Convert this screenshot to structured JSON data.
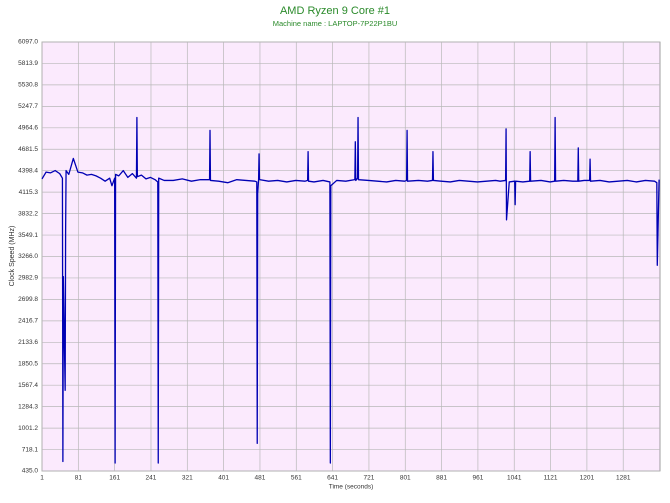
{
  "chart_data": {
    "type": "line",
    "title": "AMD Ryzen 9 Core #1",
    "subtitle": "Machine name : LAPTOP-7P22P1BU",
    "x_label": "Time (seconds)",
    "y_label": "Clock Speed (MHz)",
    "xlim": [
      1,
      1362
    ],
    "ylim": [
      435,
      6097
    ],
    "xticks": [
      1,
      81,
      161,
      241,
      321,
      401,
      481,
      561,
      641,
      721,
      801,
      881,
      961,
      1041,
      1121,
      1201,
      1281
    ],
    "yticks": [
      {
        "value": 435,
        "label": "435.0"
      },
      718.1,
      1001.2,
      1284.3,
      1567.4,
      1850.5,
      2133.6,
      2416.7,
      2699.8,
      2982.9,
      {
        "value": 3266,
        "label": "3266.0"
      },
      3549.1,
      3832.2,
      4115.3,
      4398.4,
      4681.5,
      4964.6,
      5247.7,
      5530.8,
      5813.9,
      {
        "value": 6097,
        "label": "6097.0"
      }
    ],
    "grid": true,
    "series": [
      {
        "color": "#0000b4",
        "x": [
          1,
          10,
          20,
          30,
          40,
          46,
          47,
          48,
          52,
          53,
          54,
          60,
          70,
          80,
          90,
          100,
          110,
          120,
          130,
          140,
          150,
          155,
          161,
          162,
          163,
          170,
          180,
          190,
          200,
          209,
          210,
          211,
          220,
          230,
          240,
          250,
          256,
          257,
          258,
          270,
          290,
          310,
          330,
          350,
          370,
          371,
          372,
          390,
          410,
          430,
          450,
          470,
          474,
          475,
          476,
          478,
          479,
          480,
          500,
          520,
          540,
          560,
          580,
          586,
          587,
          588,
          600,
          620,
          635,
          636,
          637,
          650,
          670,
          690,
          691,
          692,
          696,
          697,
          698,
          720,
          740,
          760,
          780,
          800,
          804,
          805,
          806,
          830,
          850,
          861,
          862,
          863,
          880,
          900,
          920,
          940,
          960,
          980,
          1000,
          1010,
          1022,
          1023,
          1024,
          1030,
          1042,
          1043,
          1044,
          1060,
          1075,
          1076,
          1077,
          1100,
          1120,
          1130,
          1131,
          1132,
          1150,
          1170,
          1181,
          1182,
          1183,
          1195,
          1207,
          1208,
          1209,
          1230,
          1250,
          1270,
          1290,
          1310,
          1330,
          1350,
          1355,
          1356,
          1360
        ],
        "values": [
          4290,
          4380,
          4370,
          4400,
          4360,
          4300,
          560,
          3000,
          1500,
          3600,
          4400,
          4350,
          4560,
          4380,
          4370,
          4340,
          4350,
          4330,
          4300,
          4260,
          4300,
          4200,
          4300,
          540,
          4350,
          4330,
          4400,
          4310,
          4360,
          4300,
          5100,
          4320,
          4340,
          4290,
          4310,
          4280,
          4250,
          540,
          4300,
          4270,
          4270,
          4290,
          4260,
          4280,
          4280,
          4930,
          4270,
          4260,
          4240,
          4280,
          4270,
          4260,
          4250,
          800,
          4100,
          4280,
          4620,
          4280,
          4260,
          4270,
          4250,
          4270,
          4260,
          4270,
          4650,
          4260,
          4250,
          4270,
          4250,
          540,
          4200,
          4270,
          4260,
          4280,
          4780,
          4270,
          4300,
          5100,
          4280,
          4270,
          4260,
          4250,
          4270,
          4260,
          4270,
          4930,
          4260,
          4270,
          4260,
          4270,
          4650,
          4270,
          4260,
          4250,
          4270,
          4260,
          4250,
          4260,
          4270,
          4260,
          4270,
          4950,
          3750,
          4250,
          4260,
          3950,
          4260,
          4250,
          4260,
          4650,
          4260,
          4270,
          4250,
          4260,
          5100,
          4260,
          4270,
          4260,
          4260,
          4700,
          4260,
          4270,
          4270,
          4550,
          4260,
          4270,
          4250,
          4260,
          4270,
          4250,
          4270,
          4260,
          4240,
          3150,
          4280
        ]
      }
    ]
  }
}
